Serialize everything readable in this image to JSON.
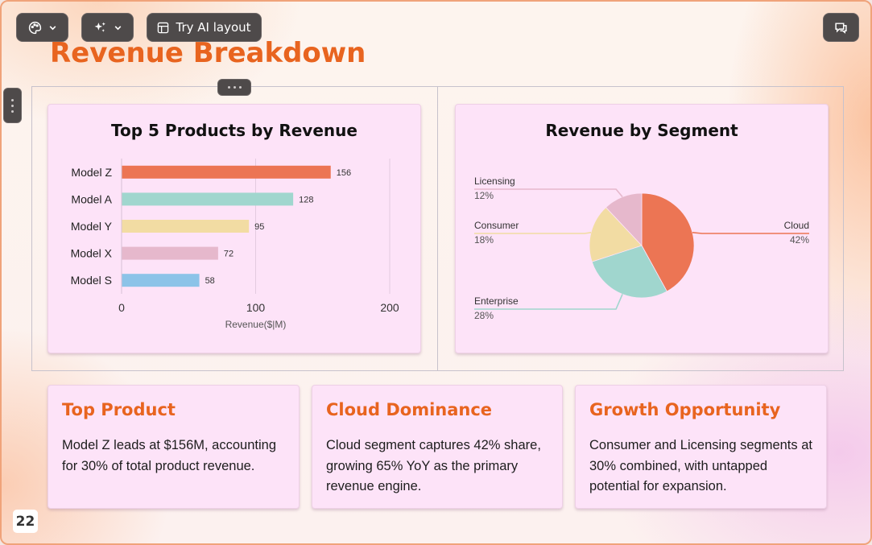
{
  "toolbar": {
    "theme_icon": "palette-icon",
    "magic_icon": "sparkle-icon",
    "ai_layout_label": "Try AI layout",
    "ai_layout_icon": "layout-icon",
    "comment_icon": "comment-icon"
  },
  "slide": {
    "title": "Revenue Breakdown",
    "page_number": "22"
  },
  "colors": {
    "accent": "#e8641f",
    "card_bg": "#fde3f8"
  },
  "chart_data": [
    {
      "type": "bar",
      "orientation": "horizontal",
      "title": "Top 5 Products by Revenue",
      "categories": [
        "Model Z",
        "Model A",
        "Model Y",
        "Model X",
        "Model S"
      ],
      "values": [
        156,
        128,
        95,
        72,
        58
      ],
      "colors": [
        "#ec7554",
        "#a0d6ce",
        "#f2dca3",
        "#e6b8cc",
        "#8cc3e8"
      ],
      "xlabel": "Revenue($|M)",
      "ylabel": "",
      "xlim": [
        0,
        200
      ],
      "xticks": [
        "0",
        "100",
        "200"
      ],
      "grid": true
    },
    {
      "type": "pie",
      "title": "Revenue by Segment",
      "slices": [
        {
          "label": "Cloud",
          "value": 42,
          "pct": "42%",
          "color": "#ec7554"
        },
        {
          "label": "Enterprise",
          "value": 28,
          "pct": "28%",
          "color": "#a0d6ce"
        },
        {
          "label": "Consumer",
          "value": 18,
          "pct": "18%",
          "color": "#f2dca3"
        },
        {
          "label": "Licensing",
          "value": 12,
          "pct": "12%",
          "color": "#e6b8cc"
        }
      ]
    }
  ],
  "insights": [
    {
      "title": "Top Product",
      "body": "Model Z leads at $156M, accounting for 30% of total product revenue."
    },
    {
      "title": "Cloud Dominance",
      "body": "Cloud segment captures 42% share, growing 65% YoY as the primary revenue engine."
    },
    {
      "title": "Growth Opportunity",
      "body": "Consumer and Licensing segments at 30% combined, with untapped potential for expansion."
    }
  ]
}
